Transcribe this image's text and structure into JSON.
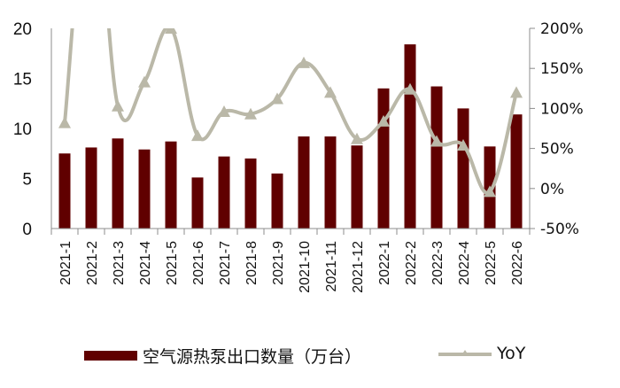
{
  "colors": {
    "bar": "#600000",
    "line": "#bab8a8",
    "axis": "#8c8c8c",
    "text": "#111111"
  },
  "chart_data": {
    "type": "bar+line",
    "title": "",
    "categories": [
      "2021-1",
      "2021-2",
      "2021-3",
      "2021-4",
      "2021-5",
      "2021-6",
      "2021-7",
      "2021-8",
      "2021-9",
      "2021-10",
      "2021-11",
      "2021-12",
      "2022-1",
      "2022-2",
      "2022-3",
      "2022-4",
      "2022-5",
      "2022-6"
    ],
    "series": [
      {
        "name": "空气源热泵出口数量（万台）",
        "type": "bar",
        "axis": "left",
        "values": [
          7.5,
          8.1,
          9.0,
          7.9,
          8.7,
          5.1,
          7.2,
          7.0,
          5.5,
          9.2,
          9.2,
          8.3,
          14.0,
          18.4,
          14.2,
          12.0,
          8.2,
          11.4
        ]
      },
      {
        "name": "YoY",
        "type": "line",
        "axis": "right",
        "unit": "%",
        "values": [
          82,
          400,
          103,
          133,
          200,
          66,
          96,
          93,
          112,
          157,
          120,
          62,
          84,
          124,
          59,
          54,
          -4,
          120
        ],
        "note": "2021-2 value exceeds the 200% axis maximum and is clipped"
      }
    ],
    "left_axis": {
      "min": 0,
      "max": 20,
      "ticks": [
        "0",
        "5",
        "10",
        "15",
        "20"
      ]
    },
    "right_axis": {
      "min": -50,
      "max": 200,
      "ticks": [
        "-50%",
        "0%",
        "50%",
        "100%",
        "150%",
        "200%"
      ]
    },
    "grid": false,
    "legend_position": "bottom"
  },
  "legend": {
    "bar_label": "空气源热泵出口数量（万台）",
    "line_label": "YoY"
  }
}
